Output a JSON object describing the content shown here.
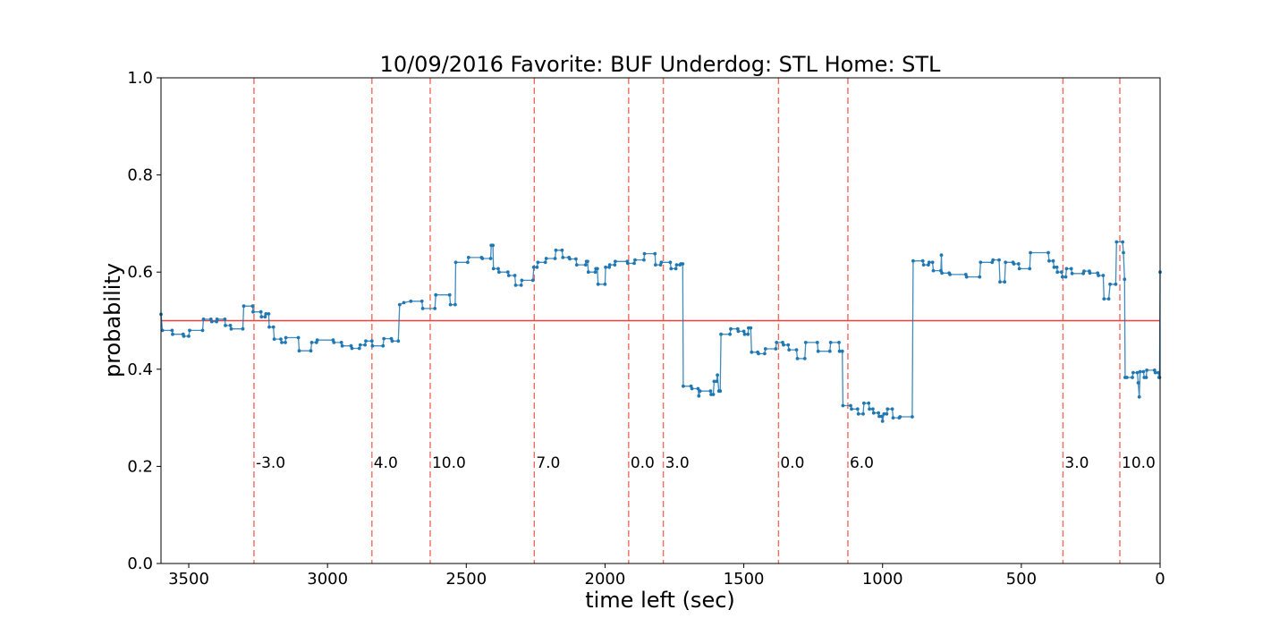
{
  "chart_data": {
    "type": "line",
    "title": "10/09/2016 Favorite: BUF Underdog: STL Home: STL",
    "xlabel": "time left (sec)",
    "ylabel": "probability",
    "xlim": [
      3600,
      0
    ],
    "ylim": [
      0.0,
      1.0
    ],
    "x_inverted": true,
    "grid": false,
    "x_ticks": [
      {
        "value": 3500,
        "label": "3500"
      },
      {
        "value": 3000,
        "label": "3000"
      },
      {
        "value": 2500,
        "label": "2500"
      },
      {
        "value": 2000,
        "label": "2000"
      },
      {
        "value": 1500,
        "label": "1500"
      },
      {
        "value": 1000,
        "label": "1000"
      },
      {
        "value": 500,
        "label": "500"
      },
      {
        "value": 0,
        "label": "0"
      }
    ],
    "y_ticks": [
      {
        "value": 0.0,
        "label": "0.0"
      },
      {
        "value": 0.2,
        "label": "0.2"
      },
      {
        "value": 0.4,
        "label": "0.4"
      },
      {
        "value": 0.6,
        "label": "0.6"
      },
      {
        "value": 0.8,
        "label": "0.8"
      },
      {
        "value": 1.0,
        "label": "1.0"
      }
    ],
    "reference_line": {
      "y": 0.5,
      "color": "#e8413c"
    },
    "scoring_events": [
      {
        "time": 3265,
        "label": "-3.0"
      },
      {
        "time": 2840,
        "label": "4.0"
      },
      {
        "time": 2630,
        "label": "10.0"
      },
      {
        "time": 2255,
        "label": "7.0"
      },
      {
        "time": 1915,
        "label": "0.0"
      },
      {
        "time": 1790,
        "label": "3.0"
      },
      {
        "time": 1375,
        "label": "0.0"
      },
      {
        "time": 1125,
        "label": "6.0"
      },
      {
        "time": 350,
        "label": "3.0"
      },
      {
        "time": 145,
        "label": "10.0"
      }
    ],
    "event_label_y": 0.21,
    "series": [
      {
        "color": "#1f77b4",
        "points": [
          [
            3600,
            0.513
          ],
          [
            3595,
            0.48
          ],
          [
            3560,
            0.48
          ],
          [
            3558,
            0.472
          ],
          [
            3520,
            0.472
          ],
          [
            3518,
            0.468
          ],
          [
            3500,
            0.468
          ],
          [
            3497,
            0.48
          ],
          [
            3450,
            0.48
          ],
          [
            3447,
            0.503
          ],
          [
            3420,
            0.503
          ],
          [
            3417,
            0.498
          ],
          [
            3400,
            0.498
          ],
          [
            3398,
            0.503
          ],
          [
            3370,
            0.503
          ],
          [
            3368,
            0.49
          ],
          [
            3350,
            0.49
          ],
          [
            3347,
            0.483
          ],
          [
            3305,
            0.483
          ],
          [
            3302,
            0.53
          ],
          [
            3270,
            0.53
          ],
          [
            3268,
            0.518
          ],
          [
            3240,
            0.518
          ],
          [
            3238,
            0.508
          ],
          [
            3225,
            0.508
          ],
          [
            3222,
            0.514
          ],
          [
            3212,
            0.514
          ],
          [
            3210,
            0.487
          ],
          [
            3195,
            0.487
          ],
          [
            3192,
            0.462
          ],
          [
            3168,
            0.462
          ],
          [
            3165,
            0.455
          ],
          [
            3152,
            0.455
          ],
          [
            3150,
            0.465
          ],
          [
            3105,
            0.465
          ],
          [
            3102,
            0.438
          ],
          [
            3060,
            0.438
          ],
          [
            3057,
            0.455
          ],
          [
            3040,
            0.455
          ],
          [
            3037,
            0.46
          ],
          [
            2980,
            0.46
          ],
          [
            2977,
            0.455
          ],
          [
            2950,
            0.455
          ],
          [
            2947,
            0.448
          ],
          [
            2915,
            0.448
          ],
          [
            2912,
            0.443
          ],
          [
            2885,
            0.443
          ],
          [
            2882,
            0.45
          ],
          [
            2865,
            0.45
          ],
          [
            2862,
            0.458
          ],
          [
            2840,
            0.458
          ],
          [
            2838,
            0.448
          ],
          [
            2800,
            0.448
          ],
          [
            2797,
            0.463
          ],
          [
            2770,
            0.463
          ],
          [
            2767,
            0.458
          ],
          [
            2745,
            0.458
          ],
          [
            2740,
            0.533
          ],
          [
            2725,
            0.537
          ],
          [
            2700,
            0.54
          ],
          [
            2660,
            0.54
          ],
          [
            2657,
            0.525
          ],
          [
            2613,
            0.525
          ],
          [
            2610,
            0.553
          ],
          [
            2560,
            0.553
          ],
          [
            2557,
            0.533
          ],
          [
            2540,
            0.533
          ],
          [
            2538,
            0.62
          ],
          [
            2495,
            0.62
          ],
          [
            2492,
            0.63
          ],
          [
            2445,
            0.63
          ],
          [
            2442,
            0.628
          ],
          [
            2412,
            0.628
          ],
          [
            2410,
            0.655
          ],
          [
            2404,
            0.655
          ],
          [
            2402,
            0.607
          ],
          [
            2385,
            0.607
          ],
          [
            2382,
            0.6
          ],
          [
            2350,
            0.6
          ],
          [
            2347,
            0.593
          ],
          [
            2325,
            0.593
          ],
          [
            2322,
            0.573
          ],
          [
            2302,
            0.573
          ],
          [
            2300,
            0.583
          ],
          [
            2260,
            0.583
          ],
          [
            2257,
            0.61
          ],
          [
            2245,
            0.61
          ],
          [
            2242,
            0.62
          ],
          [
            2215,
            0.62
          ],
          [
            2212,
            0.628
          ],
          [
            2180,
            0.628
          ],
          [
            2177,
            0.645
          ],
          [
            2155,
            0.645
          ],
          [
            2152,
            0.63
          ],
          [
            2130,
            0.63
          ],
          [
            2127,
            0.627
          ],
          [
            2105,
            0.627
          ],
          [
            2102,
            0.615
          ],
          [
            2070,
            0.615
          ],
          [
            2067,
            0.622
          ],
          [
            2063,
            0.622
          ],
          [
            2060,
            0.6
          ],
          [
            2035,
            0.6
          ],
          [
            2033,
            0.607
          ],
          [
            2028,
            0.607
          ],
          [
            2025,
            0.575
          ],
          [
            2000,
            0.575
          ],
          [
            1998,
            0.61
          ],
          [
            1985,
            0.61
          ],
          [
            1983,
            0.615
          ],
          [
            1965,
            0.615
          ],
          [
            1963,
            0.622
          ],
          [
            1920,
            0.622
          ],
          [
            1918,
            0.618
          ],
          [
            1895,
            0.618
          ],
          [
            1892,
            0.625
          ],
          [
            1860,
            0.625
          ],
          [
            1858,
            0.638
          ],
          [
            1820,
            0.638
          ],
          [
            1818,
            0.615
          ],
          [
            1800,
            0.615
          ],
          [
            1797,
            0.62
          ],
          [
            1765,
            0.62
          ],
          [
            1762,
            0.607
          ],
          [
            1745,
            0.607
          ],
          [
            1742,
            0.615
          ],
          [
            1730,
            0.615
          ],
          [
            1727,
            0.617
          ],
          [
            1720,
            0.617
          ],
          [
            1718,
            0.365
          ],
          [
            1690,
            0.365
          ],
          [
            1687,
            0.36
          ],
          [
            1665,
            0.36
          ],
          [
            1662,
            0.345
          ],
          [
            1658,
            0.355
          ],
          [
            1620,
            0.355
          ],
          [
            1618,
            0.348
          ],
          [
            1610,
            0.348
          ],
          [
            1607,
            0.375
          ],
          [
            1598,
            0.375
          ],
          [
            1595,
            0.388
          ],
          [
            1590,
            0.355
          ],
          [
            1585,
            0.355
          ],
          [
            1582,
            0.472
          ],
          [
            1550,
            0.472
          ],
          [
            1547,
            0.483
          ],
          [
            1522,
            0.483
          ],
          [
            1520,
            0.478
          ],
          [
            1500,
            0.478
          ],
          [
            1497,
            0.472
          ],
          [
            1485,
            0.472
          ],
          [
            1483,
            0.485
          ],
          [
            1475,
            0.485
          ],
          [
            1472,
            0.435
          ],
          [
            1450,
            0.435
          ],
          [
            1447,
            0.432
          ],
          [
            1425,
            0.432
          ],
          [
            1422,
            0.442
          ],
          [
            1385,
            0.442
          ],
          [
            1382,
            0.455
          ],
          [
            1360,
            0.455
          ],
          [
            1357,
            0.45
          ],
          [
            1340,
            0.45
          ],
          [
            1337,
            0.44
          ],
          [
            1310,
            0.44
          ],
          [
            1307,
            0.422
          ],
          [
            1280,
            0.422
          ],
          [
            1277,
            0.455
          ],
          [
            1235,
            0.455
          ],
          [
            1232,
            0.437
          ],
          [
            1190,
            0.437
          ],
          [
            1187,
            0.455
          ],
          [
            1157,
            0.455
          ],
          [
            1155,
            0.437
          ],
          [
            1145,
            0.437
          ],
          [
            1143,
            0.325
          ],
          [
            1115,
            0.325
          ],
          [
            1112,
            0.318
          ],
          [
            1090,
            0.318
          ],
          [
            1087,
            0.308
          ],
          [
            1070,
            0.308
          ],
          [
            1067,
            0.33
          ],
          [
            1050,
            0.33
          ],
          [
            1047,
            0.318
          ],
          [
            1035,
            0.318
          ],
          [
            1032,
            0.31
          ],
          [
            1015,
            0.31
          ],
          [
            1012,
            0.303
          ],
          [
            1003,
            0.303
          ],
          [
            1000,
            0.293
          ],
          [
            995,
            0.308
          ],
          [
            985,
            0.308
          ],
          [
            982,
            0.318
          ],
          [
            965,
            0.318
          ],
          [
            962,
            0.3
          ],
          [
            940,
            0.3
          ],
          [
            937,
            0.302
          ],
          [
            893,
            0.302
          ],
          [
            890,
            0.623
          ],
          [
            855,
            0.623
          ],
          [
            852,
            0.615
          ],
          [
            835,
            0.615
          ],
          [
            832,
            0.62
          ],
          [
            820,
            0.62
          ],
          [
            817,
            0.603
          ],
          [
            790,
            0.603
          ],
          [
            788,
            0.635
          ],
          [
            786,
            0.598
          ],
          [
            760,
            0.598
          ],
          [
            757,
            0.595
          ],
          [
            700,
            0.595
          ],
          [
            697,
            0.59
          ],
          [
            650,
            0.59
          ],
          [
            647,
            0.62
          ],
          [
            605,
            0.62
          ],
          [
            602,
            0.625
          ],
          [
            580,
            0.625
          ],
          [
            577,
            0.58
          ],
          [
            560,
            0.58
          ],
          [
            557,
            0.62
          ],
          [
            530,
            0.62
          ],
          [
            527,
            0.617
          ],
          [
            510,
            0.617
          ],
          [
            507,
            0.607
          ],
          [
            470,
            0.607
          ],
          [
            467,
            0.64
          ],
          [
            403,
            0.64
          ],
          [
            400,
            0.623
          ],
          [
            385,
            0.623
          ],
          [
            382,
            0.61
          ],
          [
            372,
            0.61
          ],
          [
            370,
            0.6
          ],
          [
            355,
            0.6
          ],
          [
            352,
            0.59
          ],
          [
            340,
            0.59
          ],
          [
            337,
            0.607
          ],
          [
            320,
            0.607
          ],
          [
            317,
            0.597
          ],
          [
            277,
            0.597
          ],
          [
            274,
            0.602
          ],
          [
            255,
            0.602
          ],
          [
            253,
            0.598
          ],
          [
            225,
            0.598
          ],
          [
            222,
            0.593
          ],
          [
            205,
            0.593
          ],
          [
            202,
            0.545
          ],
          [
            185,
            0.545
          ],
          [
            180,
            0.575
          ],
          [
            160,
            0.575
          ],
          [
            157,
            0.662
          ],
          [
            135,
            0.662
          ],
          [
            132,
            0.64
          ],
          [
            128,
            0.585
          ],
          [
            126,
            0.383
          ],
          [
            120,
            0.383
          ],
          [
            100,
            0.383
          ],
          [
            97,
            0.393
          ],
          [
            82,
            0.393
          ],
          [
            79,
            0.372
          ],
          [
            75,
            0.343
          ],
          [
            72,
            0.395
          ],
          [
            60,
            0.395
          ],
          [
            57,
            0.383
          ],
          [
            50,
            0.383
          ],
          [
            48,
            0.398
          ],
          [
            20,
            0.398
          ],
          [
            17,
            0.393
          ],
          [
            6,
            0.393
          ],
          [
            4,
            0.383
          ],
          [
            2,
            0.383
          ],
          [
            0,
            0.6
          ]
        ]
      }
    ]
  }
}
